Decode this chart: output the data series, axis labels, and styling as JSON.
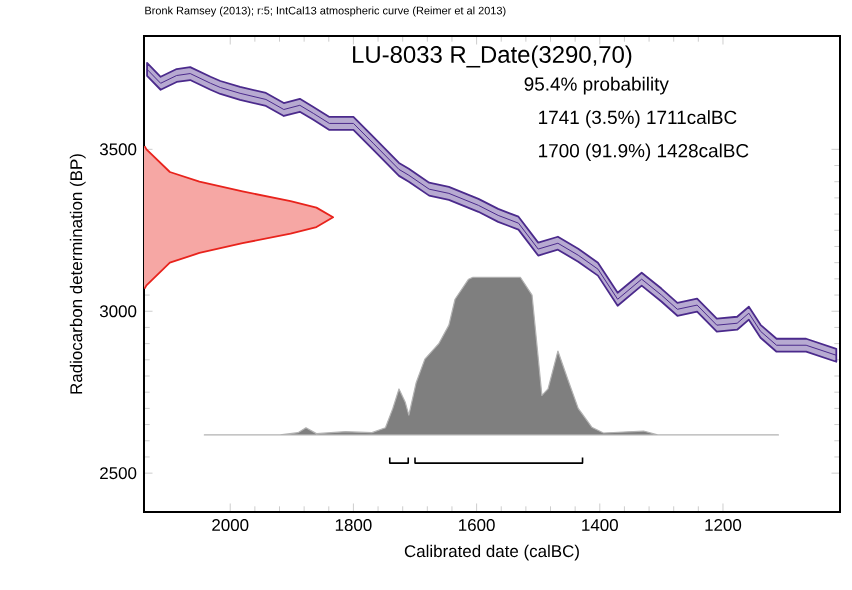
{
  "chart_data": {
    "type": "line",
    "title": "LU-8033 R_Date(3290,70)",
    "xlabel": "Calibrated date (calBC)",
    "ylabel": "Radiocarbon determination (BP)",
    "annotations": [
      "Bronk Ramsey (2013); r:5; IntCal13 atmospheric curve (Reimer et al 2013)",
      "95.4% probability",
      "1741 (3.5%) 1711calBC",
      "1700 (91.9%) 1428calBC"
    ],
    "xlim": [
      2140,
      1010
    ],
    "ylim": [
      2380,
      3850
    ],
    "xticks": [
      2000,
      1800,
      1600,
      1400,
      1200
    ],
    "yticks": [
      2500,
      3000,
      3500
    ],
    "grid": false,
    "series": [
      {
        "color": "#4b2a8c",
        "x": [
          2135,
          2113,
          2087,
          2065,
          2032,
          2016,
          1984,
          1942,
          1913,
          1887,
          1865,
          1839,
          1800,
          1768,
          1726,
          1710,
          1677,
          1645,
          1597,
          1565,
          1532,
          1500,
          1468,
          1435,
          1403,
          1371,
          1332,
          1300,
          1274,
          1242,
          1210,
          1177,
          1158,
          1139,
          1113,
          1065,
          1016
        ],
        "values": [
          3747,
          3704,
          3728,
          3734,
          3704,
          3691,
          3673,
          3654,
          3623,
          3636,
          3611,
          3580,
          3580,
          3519,
          3438,
          3420,
          3377,
          3364,
          3327,
          3296,
          3272,
          3192,
          3210,
          3173,
          3130,
          3037,
          3099,
          3050,
          3006,
          3019,
          2957,
          2963,
          2994,
          2938,
          2895,
          2895,
          2864
        ],
        "lower": [
          3727,
          3684,
          3708,
          3714,
          3684,
          3671,
          3653,
          3634,
          3603,
          3616,
          3591,
          3560,
          3560,
          3499,
          3418,
          3400,
          3357,
          3344,
          3307,
          3276,
          3252,
          3172,
          3190,
          3153,
          3110,
          3017,
          3079,
          3030,
          2986,
          2999,
          2937,
          2943,
          2974,
          2918,
          2875,
          2875,
          2844
        ],
        "upper": [
          3767,
          3724,
          3748,
          3754,
          3724,
          3711,
          3693,
          3674,
          3643,
          3656,
          3631,
          3600,
          3600,
          3539,
          3458,
          3440,
          3397,
          3384,
          3347,
          3316,
          3292,
          3212,
          3230,
          3193,
          3150,
          3057,
          3119,
          3070,
          3026,
          3039,
          2977,
          2983,
          3014,
          2958,
          2915,
          2915,
          2884
        ]
      },
      {
        "type": "area",
        "color": "#e8231c",
        "x": [
          2139,
          2136,
          2098,
          2050,
          1980,
          1902,
          1860,
          1833,
          1860,
          1902,
          1980,
          2050,
          2098,
          2136,
          2139
        ],
        "values": [
          3510,
          3500,
          3430,
          3400,
          3370,
          3340,
          3320,
          3290,
          3260,
          3240,
          3210,
          3180,
          3150,
          3080,
          3070
        ]
      },
      {
        "type": "area",
        "color": "#7f7f7f",
        "x": [
          2042,
          1919,
          1890,
          1877,
          1860,
          1813,
          1770,
          1748,
          1736,
          1726,
          1716,
          1710,
          1698,
          1684,
          1661,
          1645,
          1635,
          1613,
          1606,
          1529,
          1510,
          1494,
          1484,
          1468,
          1452,
          1435,
          1413,
          1394,
          1329,
          1306,
          1110
        ],
        "values": [
          2618,
          2618,
          2625,
          2640,
          2622,
          2628,
          2625,
          2640,
          2700,
          2760,
          2720,
          2679,
          2780,
          2852,
          2901,
          2957,
          3037,
          3099,
          3105,
          3105,
          3050,
          2740,
          2760,
          2877,
          2790,
          2700,
          2642,
          2624,
          2630,
          2618,
          2618
        ]
      },
      {
        "type": "line",
        "color": "#000000",
        "x": [
          1741,
          1741,
          1711,
          1711
        ],
        "values": [
          2548,
          2531,
          2531,
          2548
        ]
      },
      {
        "type": "line",
        "color": "#000000",
        "x": [
          1700,
          1700,
          1428,
          1428
        ],
        "values": [
          2548,
          2531,
          2531,
          2548
        ]
      }
    ]
  }
}
